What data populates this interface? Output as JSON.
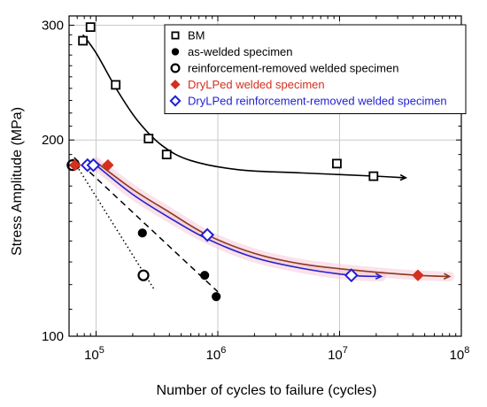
{
  "chart_data": {
    "type": "scatter",
    "xlabel": "Number of cycles to failure (cycles)",
    "ylabel": "Stress Amplitude (MPa)",
    "x_scale": "log",
    "y_scale": "log",
    "xlim": [
      60000,
      100000000
    ],
    "ylim": [
      100,
      300
    ],
    "x_ticks": [
      {
        "value": 100000,
        "base": "10",
        "exp": "5"
      },
      {
        "value": 1000000,
        "base": "10",
        "exp": "6"
      },
      {
        "value": 10000000,
        "base": "10",
        "exp": "7"
      },
      {
        "value": 100000000,
        "base": "10",
        "exp": "8"
      }
    ],
    "y_ticks": [
      {
        "value": 100,
        "label": "100"
      },
      {
        "value": 200,
        "label": "200"
      },
      {
        "value": 300,
        "label": "300"
      }
    ],
    "grid": true,
    "legend_position": "top-right",
    "series": [
      {
        "name": "BM",
        "marker": "open-square",
        "color": "#000000",
        "points": [
          {
            "x": 78000,
            "y": 284
          },
          {
            "x": 90000,
            "y": 298
          },
          {
            "x": 145000,
            "y": 243
          },
          {
            "x": 270000,
            "y": 201
          },
          {
            "x": 380000,
            "y": 190
          },
          {
            "x": 9500000,
            "y": 184
          },
          {
            "x": 19000000,
            "y": 176
          }
        ]
      },
      {
        "name": "as-welded specimen",
        "marker": "filled-circle",
        "color": "#000000",
        "points": [
          {
            "x": 68000,
            "y": 183
          },
          {
            "x": 240000,
            "y": 144
          },
          {
            "x": 780000,
            "y": 124
          },
          {
            "x": 970000,
            "y": 115
          }
        ]
      },
      {
        "name": "reinforcement-removed welded specimen",
        "marker": "open-circle",
        "color": "#000000",
        "points": [
          {
            "x": 64000,
            "y": 183
          },
          {
            "x": 245000,
            "y": 124
          }
        ]
      },
      {
        "name": "DryLPed welded specimen",
        "marker": "filled-diamond",
        "color": "#d42f1f",
        "points": [
          {
            "x": 67000,
            "y": 183
          },
          {
            "x": 125000,
            "y": 183
          },
          {
            "x": 820000,
            "y": 143
          },
          {
            "x": 44000000,
            "y": 124
          }
        ]
      },
      {
        "name": "DryLPed reinforcement-removed welded specimen",
        "marker": "open-diamond",
        "color": "#1f1fd4",
        "points": [
          {
            "x": 85000,
            "y": 183
          },
          {
            "x": 95000,
            "y": 183
          },
          {
            "x": 820000,
            "y": 143
          },
          {
            "x": 12500000,
            "y": 124
          }
        ]
      }
    ],
    "fit_lines": [
      {
        "id": "bm-fit",
        "color": "#000000",
        "style": "solid",
        "arrow": true,
        "points": [
          {
            "x": 78000,
            "y": 290
          },
          {
            "x": 100000,
            "y": 272
          },
          {
            "x": 150000,
            "y": 238
          },
          {
            "x": 220000,
            "y": 214
          },
          {
            "x": 350000,
            "y": 196
          },
          {
            "x": 600000,
            "y": 186
          },
          {
            "x": 1500000,
            "y": 180
          },
          {
            "x": 5000000,
            "y": 178
          },
          {
            "x": 20000000,
            "y": 176
          },
          {
            "x": 35000000,
            "y": 175
          }
        ]
      },
      {
        "id": "as-welded-fit",
        "color": "#000000",
        "style": "dashed",
        "arrow": false,
        "points": [
          {
            "x": 66000,
            "y": 188
          },
          {
            "x": 1000000,
            "y": 117
          }
        ]
      },
      {
        "id": "reinforcement-removed-fit",
        "color": "#000000",
        "style": "dotted",
        "arrow": false,
        "points": [
          {
            "x": 64000,
            "y": 187
          },
          {
            "x": 300000,
            "y": 118
          }
        ]
      },
      {
        "id": "drylped-fit",
        "color": "#8b3a1f",
        "style": "solid",
        "arrow": true,
        "points": [
          {
            "x": 100000,
            "y": 185
          },
          {
            "x": 200000,
            "y": 168
          },
          {
            "x": 400000,
            "y": 155
          },
          {
            "x": 820000,
            "y": 143
          },
          {
            "x": 2000000,
            "y": 134
          },
          {
            "x": 5000000,
            "y": 129
          },
          {
            "x": 15000000,
            "y": 126
          },
          {
            "x": 44000000,
            "y": 124
          },
          {
            "x": 80000000,
            "y": 123.5
          }
        ]
      },
      {
        "id": "drylped-rr-fit",
        "color": "#2222cc",
        "style": "solid",
        "arrow": true,
        "points": [
          {
            "x": 100000,
            "y": 183
          },
          {
            "x": 200000,
            "y": 165
          },
          {
            "x": 400000,
            "y": 152
          },
          {
            "x": 820000,
            "y": 141
          },
          {
            "x": 2000000,
            "y": 132
          },
          {
            "x": 5000000,
            "y": 127
          },
          {
            "x": 12500000,
            "y": 124
          },
          {
            "x": 22000000,
            "y": 123.5
          }
        ]
      }
    ]
  }
}
